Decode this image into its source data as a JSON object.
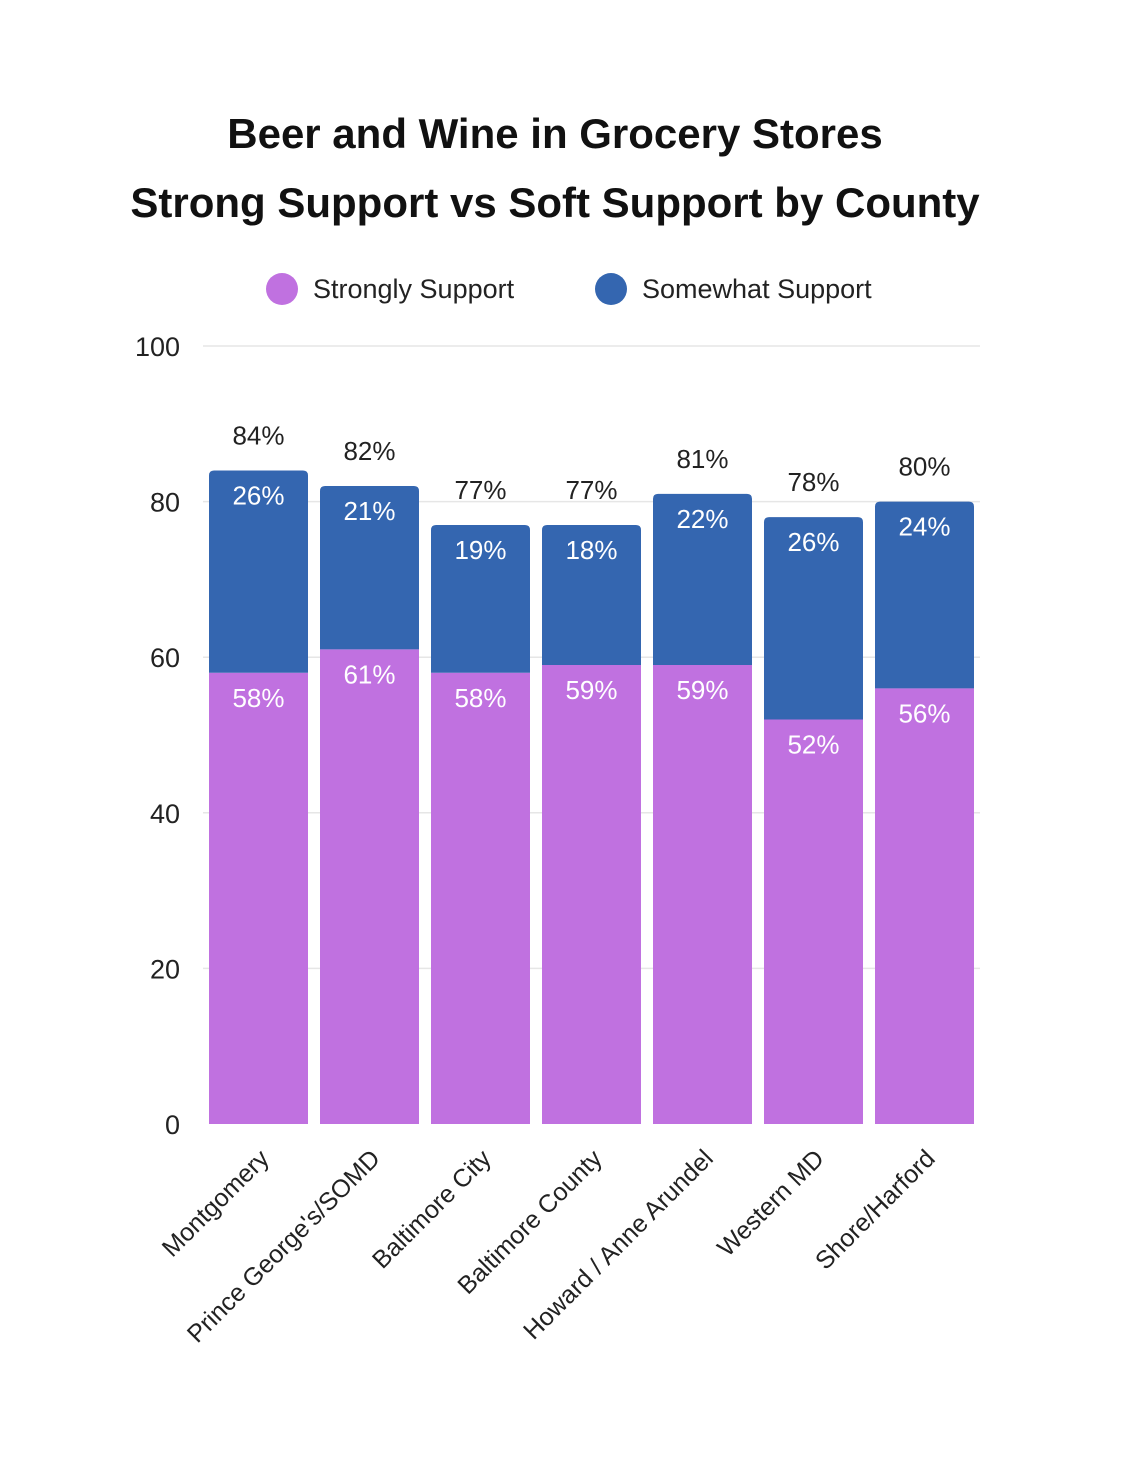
{
  "chart_data": {
    "type": "bar",
    "stacked": true,
    "title": [
      "Beer and Wine in Grocery Stores",
      "Strong Support vs Soft Support by County"
    ],
    "xlabel": "",
    "ylabel": "",
    "ylim": [
      0,
      100
    ],
    "yticks": [
      0,
      20,
      40,
      60,
      80,
      100
    ],
    "grid": true,
    "legend_position": "top",
    "categories": [
      "Montgomery",
      "Prince George's/SOMD",
      "Baltimore City",
      "Baltimore County",
      "Howard / Anne Arundel",
      "Western MD",
      "Shore/Harford"
    ],
    "series": [
      {
        "name": "Strongly Support",
        "color": "#c071e0",
        "values": [
          58,
          61,
          58,
          59,
          59,
          52,
          56
        ],
        "labels": [
          "58%",
          "61%",
          "58%",
          "59%",
          "59%",
          "52%",
          "56%"
        ]
      },
      {
        "name": "Somewhat Support",
        "color": "#3466b0",
        "values": [
          26,
          21,
          19,
          18,
          22,
          26,
          24
        ],
        "labels": [
          "26%",
          "21%",
          "19%",
          "18%",
          "22%",
          "26%",
          "24%"
        ]
      }
    ],
    "totals": [
      84,
      82,
      77,
      77,
      81,
      78,
      80
    ],
    "total_labels": [
      "84%",
      "82%",
      "77%",
      "77%",
      "81%",
      "78%",
      "80%"
    ]
  }
}
